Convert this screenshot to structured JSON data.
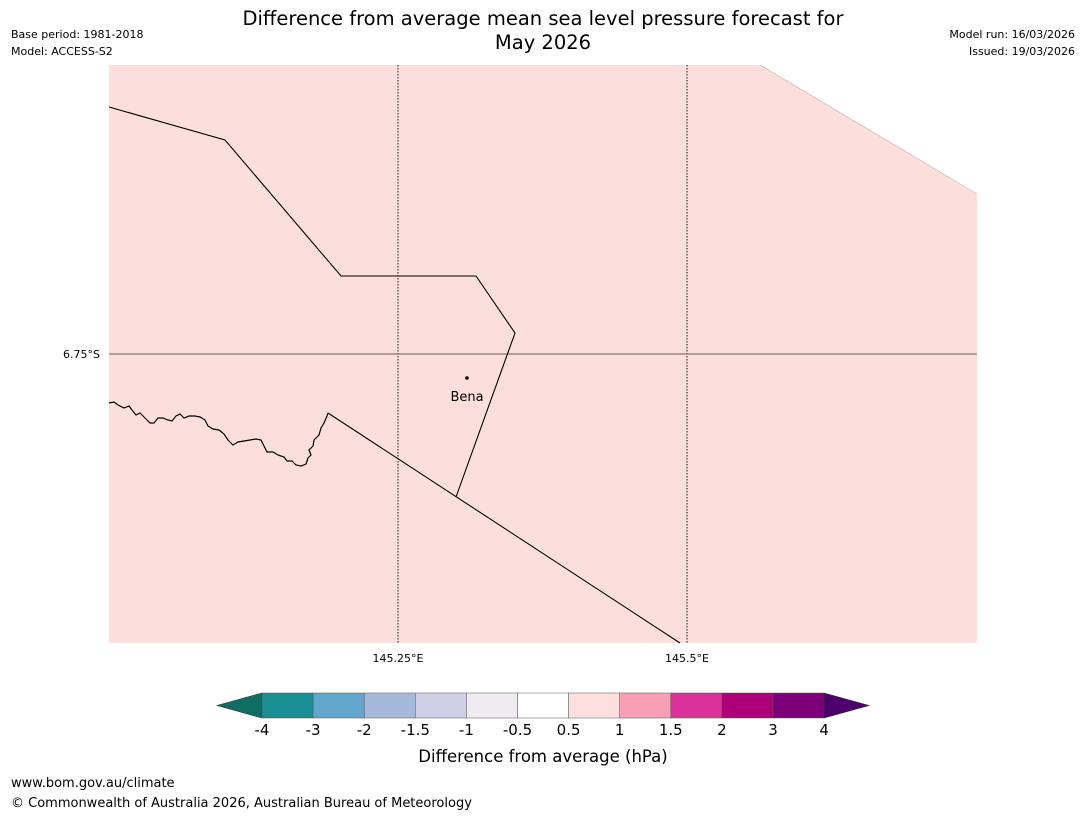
{
  "header": {
    "title_line1": "Difference from average mean sea level pressure forecast for",
    "title_line2": "May 2026",
    "base_period": "Base period: 1981-2018",
    "model": "Model: ACCESS-S2",
    "model_run": "Model run: 16/03/2026",
    "issued": "Issued: 19/03/2026"
  },
  "map": {
    "fill_color": "#fcdfdc",
    "latitude_labels": [
      "6.75°S"
    ],
    "longitude_labels": [
      "145.25°E",
      "145.5°E"
    ],
    "places": [
      {
        "name": "Bena"
      }
    ]
  },
  "colorbar": {
    "label": "Difference from average (hPa)",
    "tick_labels": [
      "-4",
      "-3",
      "-2",
      "-1.5",
      "-1",
      "-0.5",
      "0.5",
      "1",
      "1.5",
      "2",
      "3",
      "4"
    ],
    "colors": [
      "#0f6e63",
      "#1a9095",
      "#62a6cd",
      "#a5b9db",
      "#cfcfe6",
      "#efebf1",
      "#ffffff",
      "#fde0dd",
      "#f99fb5",
      "#db319a",
      "#ad0078",
      "#7c0079",
      "#4d006b"
    ]
  },
  "footer": {
    "website": "www.bom.gov.au/climate",
    "copyright": "© Commonwealth of Australia 2026, Australian Bureau of Meteorology"
  }
}
